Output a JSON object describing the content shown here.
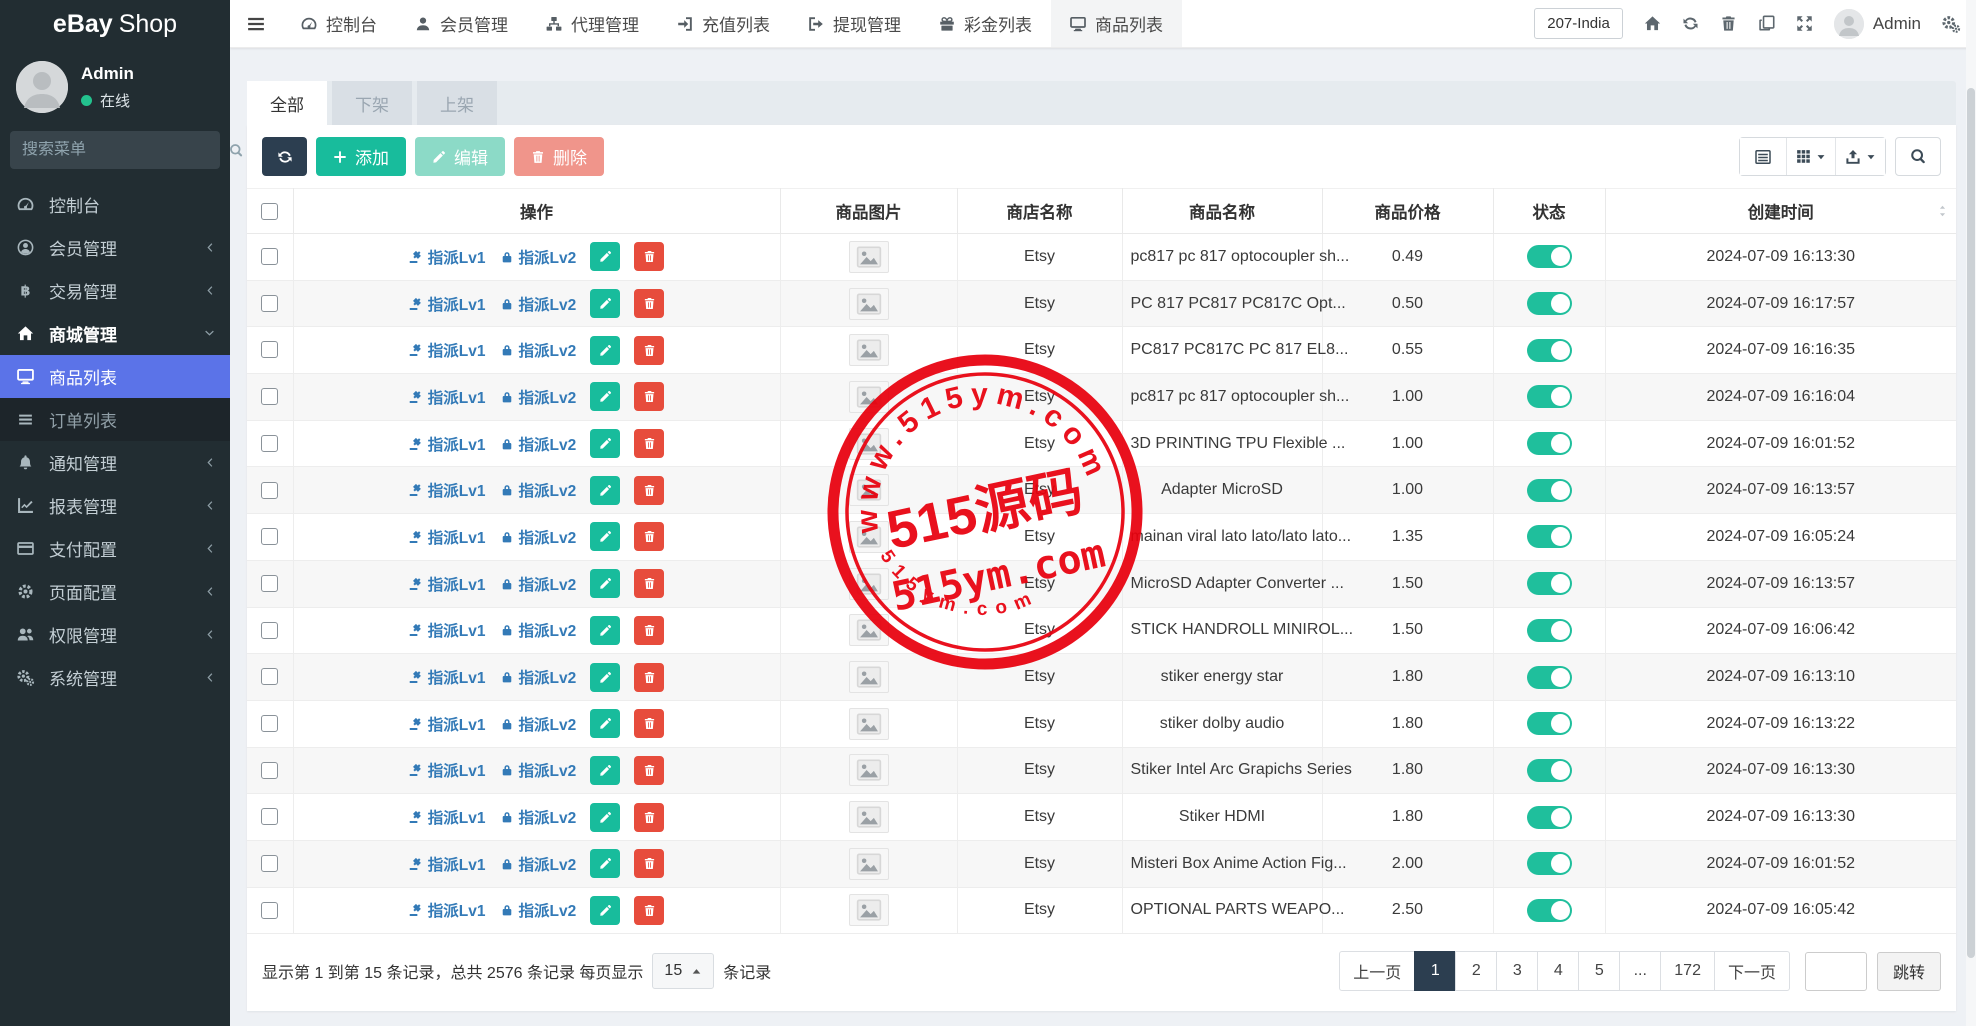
{
  "brand": {
    "bold": "eBay",
    "light": "Shop"
  },
  "user_panel": {
    "name": "Admin",
    "status": "在线"
  },
  "sidebar": {
    "search_placeholder": "搜索菜单",
    "items": [
      {
        "label": "控制台",
        "icon": "tachometer",
        "chevron": null
      },
      {
        "label": "会员管理",
        "icon": "user-circle",
        "chevron": "left"
      },
      {
        "label": "交易管理",
        "icon": "bitcoin",
        "chevron": "left"
      },
      {
        "label": "商城管理",
        "icon": "home",
        "chevron": "down",
        "open": true
      },
      {
        "label": "商品列表",
        "icon": "desktop",
        "chevron": null,
        "active": true,
        "sub": true
      },
      {
        "label": "订单列表",
        "icon": "list",
        "chevron": null,
        "subdark": true,
        "sub": true
      },
      {
        "label": "通知管理",
        "icon": "bell",
        "chevron": "left"
      },
      {
        "label": "报表管理",
        "icon": "chart-line",
        "chevron": "left"
      },
      {
        "label": "支付配置",
        "icon": "credit-card",
        "chevron": "left"
      },
      {
        "label": "页面配置",
        "icon": "gear",
        "chevron": "left"
      },
      {
        "label": "权限管理",
        "icon": "users",
        "chevron": "left"
      },
      {
        "label": "系统管理",
        "icon": "cogs",
        "chevron": "left"
      }
    ]
  },
  "topnav": {
    "items": [
      {
        "label": "控制台",
        "icon": "tachometer"
      },
      {
        "label": "会员管理",
        "icon": "user"
      },
      {
        "label": "代理管理",
        "icon": "sitemap"
      },
      {
        "label": "充值列表",
        "icon": "sign-in"
      },
      {
        "label": "提现管理",
        "icon": "sign-out"
      },
      {
        "label": "彩金列表",
        "icon": "gift"
      },
      {
        "label": "商品列表",
        "icon": "desktop",
        "active": true
      }
    ],
    "right": {
      "region_label": "207-India",
      "user": "Admin"
    }
  },
  "tabs": [
    {
      "label": "全部",
      "active": true
    },
    {
      "label": "下架",
      "active": false
    },
    {
      "label": "上架",
      "active": false
    }
  ],
  "toolbar": {
    "add_label": "添加",
    "edit_label": "编辑",
    "delete_label": "删除"
  },
  "table": {
    "headers": [
      "操作",
      "商品图片",
      "商店名称",
      "商品名称",
      "商品价格",
      "状态",
      "创建时间"
    ],
    "action_links": [
      {
        "label": "指派Lv1",
        "icon": "gavel"
      },
      {
        "label": "指派Lv2",
        "icon": "lock"
      }
    ],
    "rows": [
      {
        "store": "Etsy",
        "name": "pc817 pc 817 optocoupler sh...",
        "price": "0.49",
        "status": "on",
        "created": "2024-07-09 16:13:30"
      },
      {
        "store": "Etsy",
        "name": "PC 817 PC817 PC817C Opt...",
        "price": "0.50",
        "status": "on",
        "created": "2024-07-09 16:17:57"
      },
      {
        "store": "Etsy",
        "name": "PC817 PC817C PC 817 EL8...",
        "price": "0.55",
        "status": "on",
        "created": "2024-07-09 16:16:35"
      },
      {
        "store": "Etsy",
        "name": "pc817 pc 817 optocoupler sh...",
        "price": "1.00",
        "status": "on",
        "created": "2024-07-09 16:16:04"
      },
      {
        "store": "Etsy",
        "name": "3D PRINTING TPU Flexible ...",
        "price": "1.00",
        "status": "on",
        "created": "2024-07-09 16:01:52"
      },
      {
        "store": "Etsy",
        "name": "Adapter MicroSD",
        "price": "1.00",
        "status": "on",
        "created": "2024-07-09 16:13:57"
      },
      {
        "store": "Etsy",
        "name": "mainan viral lato lato/lato lato...",
        "price": "1.35",
        "status": "on",
        "created": "2024-07-09 16:05:24"
      },
      {
        "store": "Etsy",
        "name": "MicroSD Adapter Converter ...",
        "price": "1.50",
        "status": "on",
        "created": "2024-07-09 16:13:57"
      },
      {
        "store": "Etsy",
        "name": "STICK HANDROLL MINIROL...",
        "price": "1.50",
        "status": "on",
        "created": "2024-07-09 16:06:42"
      },
      {
        "store": "Etsy",
        "name": "stiker energy star",
        "price": "1.80",
        "status": "on",
        "created": "2024-07-09 16:13:10"
      },
      {
        "store": "Etsy",
        "name": "stiker dolby audio",
        "price": "1.80",
        "status": "on",
        "created": "2024-07-09 16:13:22"
      },
      {
        "store": "Etsy",
        "name": "Stiker Intel Arc Grapichs Series",
        "price": "1.80",
        "status": "on",
        "created": "2024-07-09 16:13:30"
      },
      {
        "store": "Etsy",
        "name": "Stiker HDMI",
        "price": "1.80",
        "status": "on",
        "created": "2024-07-09 16:13:30"
      },
      {
        "store": "Etsy",
        "name": "Misteri Box Anime Action Fig...",
        "price": "2.00",
        "status": "on",
        "created": "2024-07-09 16:01:52"
      },
      {
        "store": "Etsy",
        "name": "OPTIONAL PARTS WEAPO...",
        "price": "2.50",
        "status": "on",
        "created": "2024-07-09 16:05:42"
      }
    ]
  },
  "footer": {
    "summary_prefix": "显示第 1 到第 15 条记录，总共 2576 条记录 每页显示",
    "page_size": "15",
    "summary_suffix": "条记录",
    "pagination": [
      "上一页",
      "1",
      "2",
      "3",
      "4",
      "5",
      "...",
      "172",
      "下一页"
    ],
    "active_page": "1",
    "jump_label": "跳转"
  },
  "watermark": {
    "arc_top": "www.515ym.com",
    "center": "515源码",
    "line2": "515ym.com",
    "arc_bottom": "515ym.com",
    "color": "#e8000d"
  },
  "colors": {
    "primary": "#2c3e50",
    "success": "#18bc9c",
    "danger": "#e74c3c",
    "active_menu": "#5b73e8",
    "toggle_on": "#1fbf9c",
    "link": "#337ab7",
    "sidebar_bg": "#222d32"
  }
}
